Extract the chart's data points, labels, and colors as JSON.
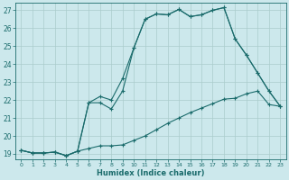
{
  "title": "",
  "xlabel": "Humidex (Indice chaleur)",
  "background_color": "#cce8ec",
  "grid_color": "#aacccc",
  "line_color": "#1a6b6b",
  "xlim": [
    -0.5,
    23.5
  ],
  "ylim": [
    18.7,
    27.4
  ],
  "yticks": [
    19,
    20,
    21,
    22,
    23,
    24,
    25,
    26,
    27
  ],
  "xticks": [
    0,
    1,
    2,
    3,
    4,
    5,
    6,
    7,
    8,
    9,
    10,
    11,
    12,
    13,
    14,
    15,
    16,
    17,
    18,
    19,
    20,
    21,
    22,
    23
  ],
  "line1_x": [
    0,
    1,
    2,
    3,
    4,
    5,
    6,
    7,
    8,
    9,
    10,
    11,
    12,
    13,
    14,
    15,
    16,
    17,
    18,
    19,
    20,
    21,
    22,
    23
  ],
  "line1_y": [
    19.2,
    19.05,
    19.05,
    19.1,
    18.9,
    19.15,
    19.3,
    19.45,
    19.45,
    19.5,
    19.75,
    20.0,
    20.35,
    20.7,
    21.0,
    21.3,
    21.55,
    21.8,
    22.05,
    22.1,
    22.35,
    22.5,
    21.75,
    21.65
  ],
  "line2_x": [
    0,
    1,
    2,
    3,
    4,
    5,
    6,
    7,
    8,
    9,
    10,
    11,
    12,
    13,
    14,
    15,
    16,
    17,
    18,
    19,
    20,
    21,
    22,
    23
  ],
  "line2_y": [
    19.2,
    19.05,
    19.05,
    19.1,
    18.9,
    19.15,
    21.85,
    22.2,
    22.0,
    23.2,
    24.9,
    26.5,
    26.8,
    26.75,
    27.05,
    26.65,
    26.75,
    27.0,
    27.15,
    25.4,
    24.5,
    23.5,
    22.5,
    21.65
  ],
  "line3_x": [
    0,
    1,
    2,
    3,
    4,
    5,
    6,
    7,
    8,
    9,
    10,
    11,
    12,
    13,
    14,
    15,
    16,
    17,
    18,
    19,
    20,
    21,
    22,
    23
  ],
  "line3_y": [
    19.2,
    19.05,
    19.05,
    19.1,
    18.9,
    19.15,
    21.85,
    21.85,
    21.5,
    22.5,
    24.9,
    26.5,
    26.8,
    26.75,
    27.05,
    26.65,
    26.75,
    27.0,
    27.15,
    25.4,
    24.5,
    23.5,
    22.5,
    21.65
  ]
}
